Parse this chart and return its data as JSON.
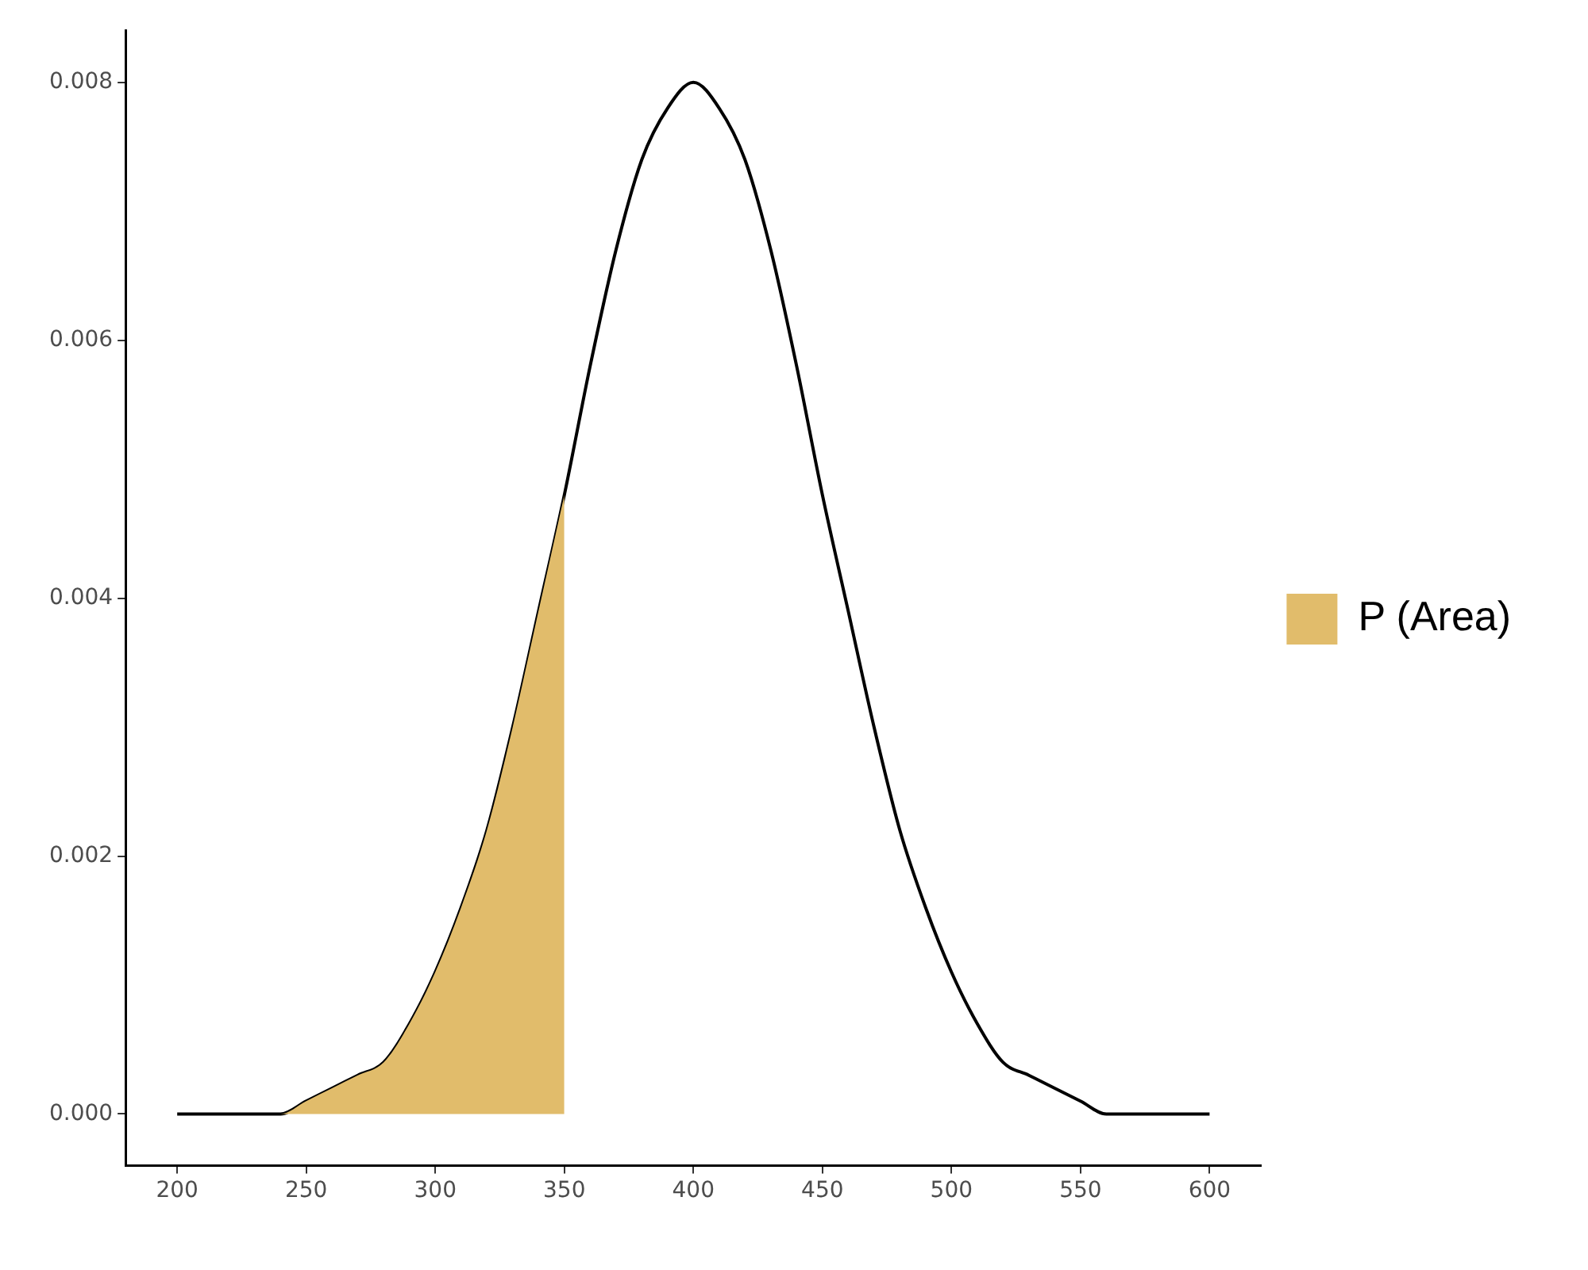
{
  "chart_data": {
    "type": "line",
    "grid": false,
    "legend": "right",
    "marker": "none",
    "line_style": "solid",
    "xlim": [
      180,
      620
    ],
    "xticks": [
      200,
      250,
      300,
      350,
      400,
      450,
      500,
      550,
      600
    ],
    "ylim": [
      -0.0004,
      0.0084
    ],
    "yticks": [
      {
        "value": 0,
        "label": "0.000"
      },
      {
        "value": 0.002,
        "label": "0.002"
      },
      {
        "value": 0.004,
        "label": "0.004"
      },
      {
        "value": 0.006,
        "label": "0.006"
      },
      {
        "value": 0.008,
        "label": "0.008"
      }
    ],
    "series": [
      {
        "type": "area",
        "name": "P (Area)",
        "color": "#e1bc6b",
        "x": [
          200,
          210,
          220,
          230,
          240,
          250,
          260,
          270,
          280,
          290,
          300,
          310,
          320,
          330,
          340,
          350
        ],
        "values": [
          0.0,
          0.0,
          0.0,
          0.0,
          0.0,
          0.0001,
          0.0002,
          0.0003,
          0.0004,
          0.0007,
          0.0011,
          0.0016,
          0.0022,
          0.003,
          0.0039,
          0.0048
        ]
      },
      {
        "type": "line",
        "color": "#000000",
        "x": [
          200,
          210,
          220,
          230,
          240,
          250,
          260,
          270,
          280,
          290,
          300,
          310,
          320,
          330,
          340,
          350,
          360,
          370,
          380,
          390,
          400,
          410,
          420,
          430,
          440,
          450,
          460,
          470,
          480,
          490,
          500,
          510,
          520,
          530,
          540,
          550,
          560,
          570,
          580,
          590,
          600
        ],
        "values": [
          0.0,
          0.0,
          0.0,
          0.0,
          0.0,
          0.0001,
          0.0002,
          0.0003,
          0.0004,
          0.0007,
          0.0011,
          0.0016,
          0.0022,
          0.003,
          0.0039,
          0.0048,
          0.0058,
          0.0067,
          0.0074,
          0.0078,
          0.008,
          0.0078,
          0.0074,
          0.0067,
          0.0058,
          0.0048,
          0.0039,
          0.003,
          0.0022,
          0.0016,
          0.0011,
          0.0007,
          0.0004,
          0.0003,
          0.0002,
          0.0001,
          0.0,
          0.0,
          0.0,
          0.0,
          0.0
        ]
      }
    ]
  }
}
